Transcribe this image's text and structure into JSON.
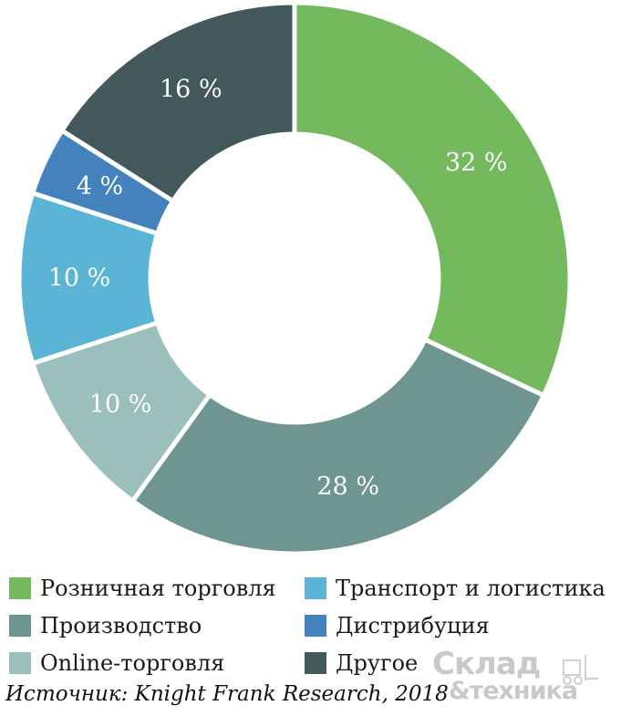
{
  "chart_data": {
    "type": "pie",
    "donut": true,
    "title": "",
    "slices": [
      {
        "label": "Розничная торговля",
        "value": 32,
        "display": "32 %",
        "color": "#74b95d"
      },
      {
        "label": "Производство",
        "value": 28,
        "display": "28 %",
        "color": "#6e958f"
      },
      {
        "label": "Online-торговля",
        "value": 10,
        "display": "10 %",
        "color": "#9bbfbb"
      },
      {
        "label": "Транспорт и логистика",
        "value": 10,
        "display": "10 %",
        "color": "#5ab4d6"
      },
      {
        "label": "Дистрибуция",
        "value": 4,
        "display": "4 %",
        "color": "#4382bc"
      },
      {
        "label": "Другое",
        "value": 16,
        "display": "16 %",
        "color": "#42585a"
      }
    ],
    "legend_order": [
      0,
      3,
      1,
      4,
      2,
      5
    ],
    "legend_position": "bottom"
  },
  "source": "Источник: Knight Frank Research, 2018",
  "watermark": {
    "line1": "Склад",
    "line2": "&техника",
    "icon": "forklift-icon"
  }
}
